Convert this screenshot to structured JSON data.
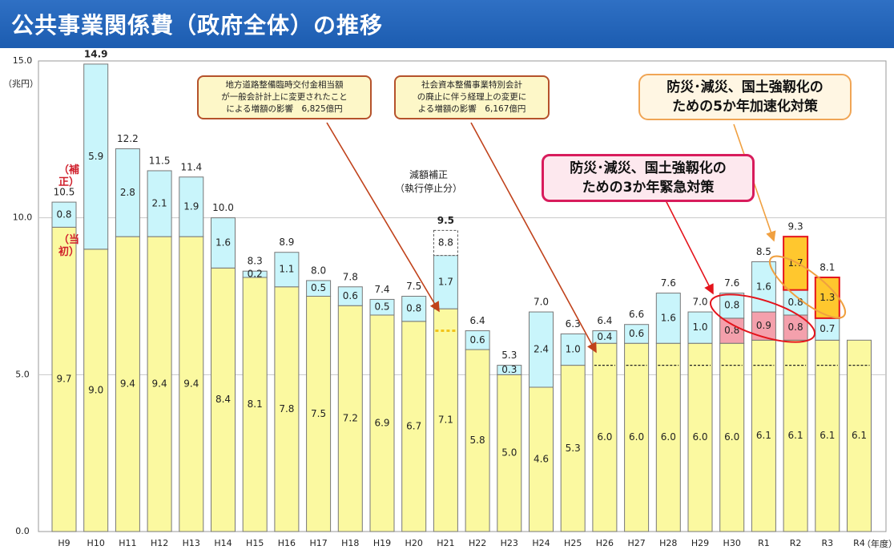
{
  "title": "公共事業関係費（政府全体）の推移",
  "unit_y": "（兆円）",
  "unit_x": "（年度）",
  "colors": {
    "initial": "#fbf9a0",
    "supplementary": "#c9f5fb",
    "emergency": "#f4a0ac",
    "accelerated": "#ffc72e",
    "bar_edge": "#777777",
    "highlight_edge": "#e4141c",
    "dashed_line": "#222222",
    "h21_marker": "#f2c41a"
  },
  "annotations": {
    "road_fund": [
      "地方道路整備臨時交付金相当額",
      "が一般会計計上に変更されたこと",
      "による増額の影響　6,825億円"
    ],
    "social_capital": [
      "社会資本整備事業特別会計",
      "の廃止に伴う経理上の変更に",
      "よる増額の影響　6,167億円"
    ],
    "reduction": [
      "減額補正",
      "（執行停止分）"
    ],
    "emergency_3yr": [
      "防災･減災、国土強靱化の",
      "ための3か年緊急対策"
    ],
    "accelerated_5yr": [
      "防災･減災、国土強靱化の",
      "ための5か年加速化対策"
    ],
    "h9_supp_label": "（補正）",
    "h9_initial_label": "（当初）"
  },
  "chart_data": {
    "type": "bar",
    "stacked": true,
    "title": "公共事業関係費（政府全体）の推移",
    "ylabel": "（兆円）",
    "xlabel": "（年度）",
    "ylim": [
      0,
      15
    ],
    "yticks": [
      "0.0",
      "5.0",
      "10.0",
      "15.0"
    ],
    "grid": true,
    "categories": [
      "H9",
      "H10",
      "H11",
      "H12",
      "H13",
      "H14",
      "H15",
      "H16",
      "H17",
      "H18",
      "H19",
      "H20",
      "H21",
      "H22",
      "H23",
      "H24",
      "H25",
      "H26",
      "H27",
      "H28",
      "H29",
      "H30",
      "R1",
      "R2",
      "R3",
      "R4"
    ],
    "totals": [
      "10.5",
      "14.9",
      "12.2",
      "11.5",
      "11.4",
      "10.0",
      "8.3",
      "8.9",
      "8.0",
      "7.8",
      "7.4",
      "7.5",
      "9.5",
      "6.4",
      "5.3",
      "7.0",
      "6.3",
      "6.4",
      "6.6",
      "7.6",
      "7.0",
      "7.6",
      "8.5",
      "9.3",
      "8.1",
      ""
    ],
    "series": [
      {
        "name": "当初",
        "values": [
          9.7,
          9.0,
          9.4,
          9.4,
          9.4,
          8.4,
          8.1,
          7.8,
          7.5,
          7.2,
          6.9,
          6.7,
          7.1,
          5.8,
          5.0,
          4.6,
          5.3,
          6.0,
          6.0,
          6.0,
          6.0,
          6.0,
          6.1,
          6.1,
          6.1,
          6.1
        ]
      },
      {
        "name": "緊急対策",
        "values": [
          0,
          0,
          0,
          0,
          0,
          0,
          0,
          0,
          0,
          0,
          0,
          0,
          0,
          0,
          0,
          0,
          0,
          0,
          0,
          0,
          0,
          0.8,
          0.9,
          0.8,
          0,
          0
        ]
      },
      {
        "name": "補正",
        "values": [
          0.8,
          5.9,
          2.8,
          2.1,
          1.9,
          1.6,
          0.2,
          1.1,
          0.5,
          0.6,
          0.5,
          0.8,
          1.7,
          0.6,
          0.3,
          2.4,
          1.0,
          0.4,
          0.6,
          1.6,
          1.0,
          0.8,
          1.6,
          0.8,
          0.7,
          0
        ]
      },
      {
        "name": "加速化対策",
        "values": [
          0,
          0,
          0,
          0,
          0,
          0,
          0,
          0,
          0,
          0,
          0,
          0,
          0,
          0,
          0,
          0,
          0,
          0,
          0,
          0,
          0,
          0,
          0,
          1.7,
          1.3,
          0
        ]
      },
      {
        "name": "減額補正",
        "values": [
          0,
          0,
          0,
          0,
          0,
          0,
          0,
          0,
          0,
          0,
          0,
          0,
          0.8,
          0,
          0,
          0,
          0,
          0,
          0,
          0,
          0,
          0,
          0,
          0,
          0,
          0
        ]
      }
    ],
    "segment_labels": [
      [
        "9.7",
        "0.8"
      ],
      [
        "9.0",
        "5.9"
      ],
      [
        "9.4",
        "2.8"
      ],
      [
        "9.4",
        "2.1"
      ],
      [
        "9.4",
        "1.9"
      ],
      [
        "8.4",
        "1.6"
      ],
      [
        "8.1",
        "0.2"
      ],
      [
        "7.8",
        "1.1"
      ],
      [
        "7.5",
        "0.5"
      ],
      [
        "7.2",
        "0.6"
      ],
      [
        "6.9",
        "0.5"
      ],
      [
        "6.7",
        "0.8"
      ],
      [
        "7.1",
        "1.7",
        "8.8"
      ],
      [
        "5.8",
        "0.6"
      ],
      [
        "5.0",
        "0.3"
      ],
      [
        "4.6",
        "2.4"
      ],
      [
        "5.3",
        "1.0"
      ],
      [
        "6.0",
        "0.4"
      ],
      [
        "6.0",
        "0.6"
      ],
      [
        "6.0",
        "1.6"
      ],
      [
        "6.0",
        "1.0"
      ],
      [
        "6.0",
        "0.8",
        "0.8"
      ],
      [
        "6.1",
        "0.9",
        "1.6"
      ],
      [
        "6.1",
        "0.8",
        "0.8",
        "1.7"
      ],
      [
        "6.1",
        "0.7",
        "1.3"
      ],
      [
        "6.1"
      ]
    ],
    "baseline_before_change": 5.3,
    "baseline_marked_bars": [
      "H26",
      "H27",
      "H28",
      "H29",
      "H30",
      "R1",
      "R2",
      "R3",
      "R4"
    ]
  }
}
